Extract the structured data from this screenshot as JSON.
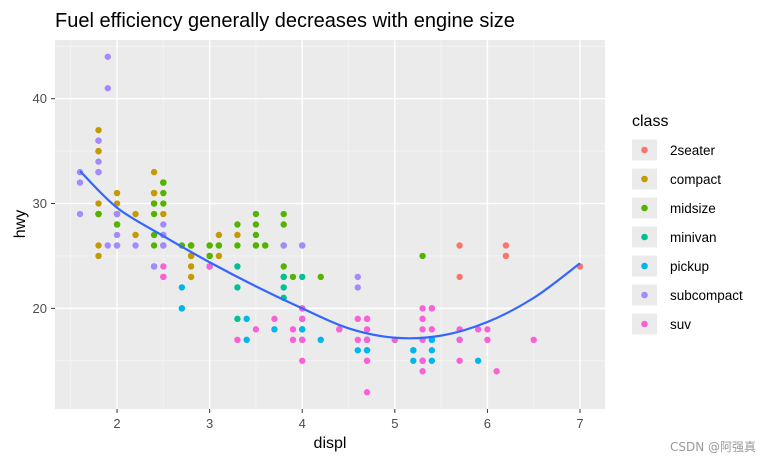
{
  "chart_data": {
    "type": "scatter",
    "title": "Fuel efficiency generally decreases with engine size",
    "xlabel": "displ",
    "ylabel": "hwy",
    "xlim": [
      1.33,
      7.27
    ],
    "ylim": [
      10.4,
      45.6
    ],
    "x_ticks": [
      2,
      3,
      4,
      5,
      6,
      7
    ],
    "y_ticks": [
      20,
      30,
      40
    ],
    "grid": true,
    "legend": {
      "title": "class",
      "position": "right",
      "entries": [
        {
          "label": "2seater",
          "color": "#F8766D"
        },
        {
          "label": "compact",
          "color": "#C49A00"
        },
        {
          "label": "midsize",
          "color": "#53B400"
        },
        {
          "label": "minivan",
          "color": "#00C094"
        },
        {
          "label": "pickup",
          "color": "#00B6EB"
        },
        {
          "label": "subcompact",
          "color": "#A58AFF"
        },
        {
          "label": "suv",
          "color": "#FB61D7"
        }
      ]
    },
    "series": [
      {
        "name": "2seater",
        "color": "#F8766D",
        "points": [
          [
            5.7,
            26
          ],
          [
            5.7,
            23
          ],
          [
            6.2,
            26
          ],
          [
            6.2,
            25
          ],
          [
            7.0,
            24
          ]
        ]
      },
      {
        "name": "compact",
        "color": "#C49A00",
        "points": [
          [
            1.8,
            29
          ],
          [
            1.8,
            29
          ],
          [
            2.0,
            31
          ],
          [
            2.0,
            30
          ],
          [
            2.8,
            26
          ],
          [
            2.8,
            26
          ],
          [
            3.1,
            27
          ],
          [
            1.8,
            26
          ],
          [
            1.8,
            25
          ],
          [
            2.0,
            28
          ],
          [
            2.0,
            29
          ],
          [
            2.8,
            25
          ],
          [
            2.8,
            25
          ],
          [
            3.1,
            25
          ],
          [
            2.2,
            27
          ],
          [
            2.2,
            29
          ],
          [
            2.4,
            31
          ],
          [
            2.4,
            31
          ],
          [
            3.0,
            26
          ],
          [
            3.3,
            27
          ],
          [
            1.8,
            30
          ],
          [
            1.8,
            33
          ],
          [
            1.8,
            35
          ],
          [
            1.8,
            37
          ],
          [
            1.8,
            35
          ],
          [
            2.0,
            29
          ],
          [
            2.0,
            26
          ],
          [
            2.5,
            26
          ],
          [
            2.5,
            29
          ],
          [
            2.4,
            30
          ],
          [
            2.4,
            33
          ],
          [
            2.8,
            24
          ],
          [
            2.8,
            23
          ]
        ]
      },
      {
        "name": "midsize",
        "color": "#53B400",
        "points": [
          [
            2.4,
            27
          ],
          [
            2.4,
            30
          ],
          [
            3.1,
            26
          ],
          [
            3.5,
            29
          ],
          [
            3.6,
            26
          ],
          [
            2.4,
            26
          ],
          [
            3.0,
            26
          ],
          [
            3.3,
            28
          ],
          [
            3.3,
            26
          ],
          [
            3.8,
            28
          ],
          [
            3.8,
            26
          ],
          [
            3.8,
            29
          ],
          [
            5.3,
            25
          ],
          [
            2.5,
            32
          ],
          [
            2.5,
            31
          ],
          [
            2.5,
            27
          ],
          [
            3.5,
            27
          ],
          [
            3.5,
            28
          ],
          [
            3.0,
            25
          ],
          [
            3.0,
            25
          ],
          [
            3.5,
            26
          ],
          [
            3.5,
            26
          ],
          [
            2.4,
            29
          ],
          [
            3.8,
            24
          ],
          [
            4.2,
            23
          ],
          [
            2.0,
            28
          ],
          [
            2.0,
            29
          ],
          [
            2.7,
            26
          ],
          [
            1.8,
            29
          ],
          [
            1.8,
            29
          ],
          [
            3.1,
            26
          ],
          [
            3.8,
            23
          ],
          [
            3.9,
            23
          ],
          [
            4.0,
            26
          ],
          [
            3.6,
            26
          ],
          [
            2.5,
            32
          ],
          [
            2.5,
            30
          ],
          [
            2.8,
            26
          ]
        ]
      },
      {
        "name": "minivan",
        "color": "#00C094",
        "points": [
          [
            2.4,
            24
          ],
          [
            3.0,
            24
          ],
          [
            3.3,
            22
          ],
          [
            3.3,
            24
          ],
          [
            3.8,
            23
          ],
          [
            3.8,
            22
          ],
          [
            3.8,
            21
          ],
          [
            4.0,
            23
          ],
          [
            2.7,
            20
          ],
          [
            3.0,
            24
          ],
          [
            3.3,
            19
          ]
        ]
      },
      {
        "name": "pickup",
        "color": "#00B6EB",
        "points": [
          [
            3.7,
            18
          ],
          [
            4.7,
            17
          ],
          [
            4.7,
            17
          ],
          [
            5.2,
            15
          ],
          [
            5.2,
            16
          ],
          [
            5.7,
            17
          ],
          [
            5.9,
            15
          ],
          [
            4.7,
            16
          ],
          [
            5.2,
            16
          ],
          [
            5.4,
            15
          ],
          [
            5.4,
            17
          ],
          [
            4.2,
            17
          ],
          [
            4.6,
            16
          ],
          [
            5.4,
            16
          ],
          [
            2.7,
            22
          ],
          [
            2.7,
            20
          ],
          [
            3.4,
            17
          ],
          [
            3.4,
            19
          ],
          [
            4.0,
            18
          ],
          [
            4.7,
            16
          ],
          [
            4.7,
            17
          ],
          [
            5.3,
            15
          ],
          [
            5.4,
            17
          ],
          [
            5.0,
            17
          ],
          [
            3.0,
            24
          ],
          [
            4.0,
            20
          ],
          [
            4.0,
            19
          ],
          [
            4.0,
            17
          ],
          [
            4.0,
            18
          ]
        ]
      },
      {
        "name": "subcompact",
        "color": "#A58AFF",
        "points": [
          [
            1.9,
            44
          ],
          [
            1.9,
            41
          ],
          [
            1.6,
            33
          ],
          [
            1.6,
            32
          ],
          [
            1.6,
            29
          ],
          [
            1.8,
            36
          ],
          [
            1.8,
            34
          ],
          [
            1.8,
            33
          ],
          [
            2.0,
            29
          ],
          [
            2.0,
            27
          ],
          [
            2.0,
            26
          ],
          [
            2.5,
            27
          ],
          [
            2.5,
            28
          ],
          [
            2.5,
            26
          ],
          [
            2.2,
            26
          ],
          [
            3.8,
            26
          ],
          [
            4.0,
            26
          ],
          [
            4.6,
            23
          ],
          [
            4.6,
            22
          ],
          [
            5.4,
            20
          ],
          [
            2.5,
            26
          ],
          [
            1.9,
            26
          ],
          [
            2.4,
            24
          ],
          [
            1.8,
            36
          ]
        ]
      },
      {
        "name": "suv",
        "color": "#FB61D7",
        "points": [
          [
            4.7,
            12
          ],
          [
            5.7,
            15
          ],
          [
            6.1,
            14
          ],
          [
            5.3,
            20
          ],
          [
            5.3,
            19
          ],
          [
            5.3,
            15
          ],
          [
            5.3,
            17
          ],
          [
            6.5,
            17
          ],
          [
            4.7,
            19
          ],
          [
            4.7,
            15
          ],
          [
            4.7,
            17
          ],
          [
            3.7,
            19
          ],
          [
            3.9,
            17
          ],
          [
            4.6,
            17
          ],
          [
            4.7,
            15
          ],
          [
            5.3,
            14
          ],
          [
            4.0,
            20
          ],
          [
            4.0,
            19
          ],
          [
            4.0,
            17
          ],
          [
            4.6,
            19
          ],
          [
            5.0,
            17
          ],
          [
            5.4,
            18
          ],
          [
            5.7,
            17
          ],
          [
            6.0,
            18
          ],
          [
            6.0,
            17
          ],
          [
            4.7,
            18
          ],
          [
            5.4,
            20
          ],
          [
            5.7,
            18
          ],
          [
            2.5,
            23
          ],
          [
            2.5,
            24
          ],
          [
            3.0,
            24
          ],
          [
            3.3,
            17
          ],
          [
            3.9,
            18
          ],
          [
            4.0,
            15
          ],
          [
            4.4,
            18
          ],
          [
            4.7,
            19
          ],
          [
            5.3,
            18
          ],
          [
            5.9,
            18
          ],
          [
            2.5,
            23
          ],
          [
            3.5,
            18
          ],
          [
            4.4,
            18
          ]
        ]
      }
    ],
    "smooth_line": {
      "color": "#3366FF",
      "points": [
        [
          1.6,
          33.1
        ],
        [
          2.0,
          29.6
        ],
        [
          2.5,
          26.9
        ],
        [
          3.0,
          24.4
        ],
        [
          3.5,
          22.1
        ],
        [
          4.0,
          20.0
        ],
        [
          4.5,
          18.1
        ],
        [
          5.0,
          17.2
        ],
        [
          5.5,
          17.4
        ],
        [
          6.0,
          18.7
        ],
        [
          6.5,
          21.0
        ],
        [
          7.0,
          24.3
        ]
      ]
    }
  },
  "watermark": "CSDN @阿强真"
}
